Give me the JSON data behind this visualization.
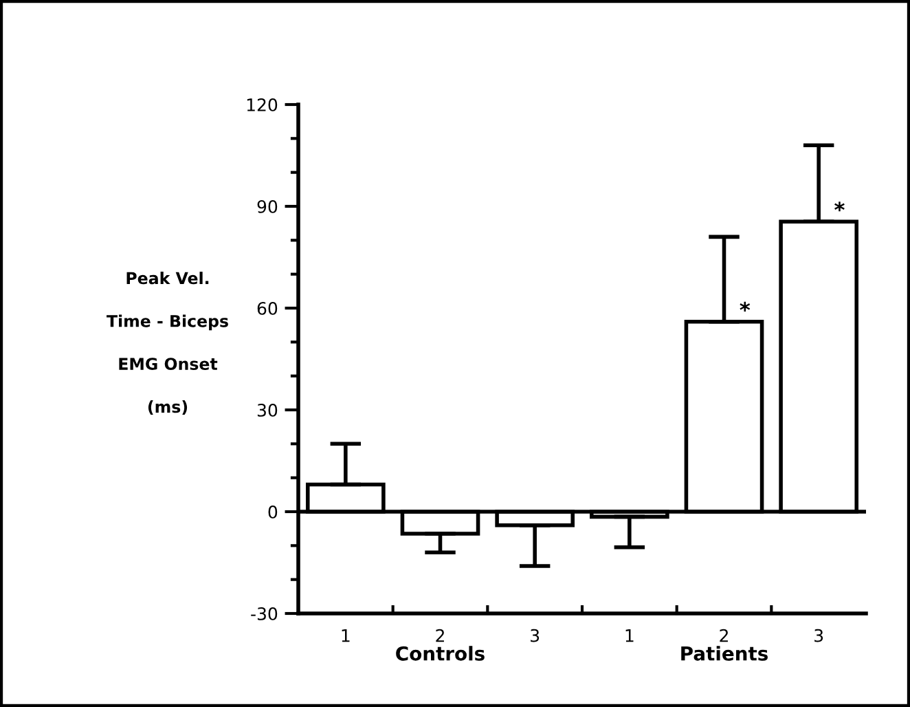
{
  "chart_data": {
    "type": "bar",
    "ylabel": "Peak Vel.\nTime - Biceps\nEMG Onset\n(ms)",
    "categories": [
      "1",
      "2",
      "3",
      "1",
      "2",
      "3"
    ],
    "values": [
      8,
      -6.5,
      -4,
      -1.5,
      56,
      85.5
    ],
    "errors": [
      [
        8,
        20
      ],
      [
        -12,
        -6.5
      ],
      [
        -16,
        -4
      ],
      [
        -10.5,
        -1.5
      ],
      [
        56,
        81
      ],
      [
        85.5,
        108
      ]
    ],
    "color": "#ffffff",
    "ylim": [
      -30,
      120
    ],
    "yticks": [
      -30,
      0,
      30,
      60,
      90,
      120
    ],
    "ref_lines": [
      {
        "axis": "y",
        "value": 0
      }
    ],
    "annotations": [
      "Controls",
      "Patients",
      "*",
      "*"
    ],
    "grid": false,
    "legend": false
  }
}
